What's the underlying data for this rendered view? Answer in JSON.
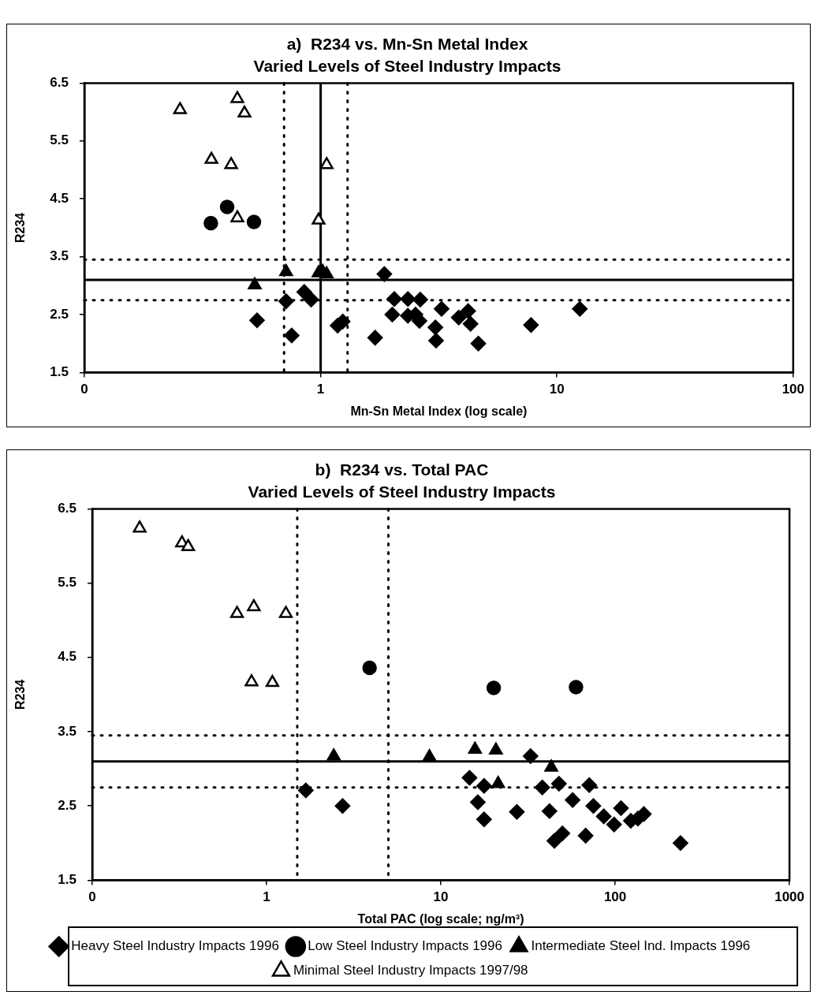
{
  "chart_data": [
    {
      "type": "scatter",
      "title": "a)  R234 vs. Mn-Sn Metal Index",
      "subtitle": "Varied Levels of Steel Industry Impacts",
      "xlabel": "Mn-Sn Metal Index (log scale)",
      "ylabel": "R234",
      "log": "x",
      "grid": false,
      "legend": false,
      "xlim": [
        0.1,
        100
      ],
      "xticks": [
        {
          "value": 0.1,
          "label": "0"
        },
        1,
        10,
        100
      ],
      "ylim": [
        1.5,
        6.5
      ],
      "yticks": [
        1.5,
        2.5,
        3.5,
        4.5,
        5.5,
        6.5
      ],
      "series": [
        {
          "color": "#000000",
          "marker": "diamond",
          "x": [
            0.714,
            0.538,
            0.754,
            0.852,
            0.912,
            1.18,
            1.24,
            1.7,
            1.86,
            2.01,
            2.05,
            2.34,
            2.34,
            2.64,
            2.52,
            2.62,
            3.25,
            3.06,
            3.08,
            3.84,
            4.21,
            4.31,
            4.65,
            7.77,
            12.5
          ],
          "values": [
            2.73,
            2.4,
            2.14,
            2.89,
            2.76,
            2.31,
            2.38,
            2.1,
            3.2,
            2.5,
            2.77,
            2.77,
            2.48,
            2.76,
            2.5,
            2.39,
            2.6,
            2.28,
            2.05,
            2.45,
            2.56,
            2.34,
            2.0,
            2.32,
            2.6
          ]
        },
        {
          "color": "#000000",
          "marker": "circle",
          "x": [
            0.343,
            0.402,
            0.522
          ],
          "values": [
            4.08,
            4.36,
            4.1
          ]
        },
        {
          "color": "#000000",
          "marker": "triangle",
          "x": [
            0.526,
            0.714,
            0.98,
            1.02,
            1.06
          ],
          "values": [
            3.01,
            3.24,
            3.22,
            3.24,
            3.2
          ]
        },
        {
          "color": "#ffffff",
          "marker": "triangle",
          "x": [
            0.254,
            0.444,
            0.476,
            0.345,
            0.418,
            0.444,
            1.06,
            0.98
          ],
          "values": [
            6.04,
            6.23,
            5.98,
            5.18,
            5.09,
            4.17,
            5.09,
            4.13
          ]
        }
      ],
      "ref_lines": [
        {
          "axis": "y",
          "value": 3.1,
          "line_style": "solid",
          "color": "#000000"
        },
        {
          "axis": "y",
          "value": 3.45,
          "line_style": "dotted",
          "color": "#000000"
        },
        {
          "axis": "y",
          "value": 2.75,
          "line_style": "dotted",
          "color": "#000000"
        },
        {
          "axis": "x",
          "value": 1,
          "line_style": "solid",
          "color": "#000000"
        },
        {
          "axis": "x",
          "value": 0.7,
          "line_style": "dotted",
          "color": "#000000"
        },
        {
          "axis": "x",
          "value": 1.3,
          "line_style": "dotted",
          "color": "#000000"
        }
      ]
    },
    {
      "type": "scatter",
      "title": "b)  R234 vs. Total PAC",
      "subtitle": "Varied Levels of Steel Industry Impacts",
      "xlabel": "Total PAC (log scale; ng/m³)",
      "ylabel": "R234",
      "log": "x",
      "grid": false,
      "legend": "bottom",
      "xlim": [
        0.1,
        1000
      ],
      "xticks": [
        {
          "value": 0.1,
          "label": "0"
        },
        1,
        10,
        100,
        1000
      ],
      "ylim": [
        1.5,
        6.5
      ],
      "yticks": [
        1.5,
        2.5,
        3.5,
        4.5,
        5.5,
        6.5
      ],
      "series": [
        {
          "name": "Heavy Steel Industry Impacts 1996",
          "color": "#000000",
          "marker": "diamond",
          "x": [
            1.68,
            2.73,
            14.6,
            17.7,
            16.3,
            17.7,
            27.3,
            32.7,
            38.2,
            47.6,
            42,
            57,
            44.8,
            49.8,
            71,
            67.7,
            75,
            86,
            98.6,
            108,
            123,
            135,
            146,
            237
          ],
          "values": [
            2.71,
            2.5,
            2.88,
            2.77,
            2.55,
            2.32,
            2.42,
            3.17,
            2.75,
            2.8,
            2.43,
            2.58,
            2.03,
            2.13,
            2.78,
            2.1,
            2.5,
            2.36,
            2.25,
            2.47,
            2.3,
            2.33,
            2.39,
            2.0
          ]
        },
        {
          "name": "Low Steel Industry Impacts 1996",
          "color": "#000000",
          "marker": "circle",
          "x": [
            3.9,
            20.1,
            59.6
          ],
          "values": [
            4.36,
            4.09,
            4.1
          ]
        },
        {
          "name": "Intermediate Steel Ind. Impacts 1996",
          "color": "#000000",
          "marker": "triangle",
          "x": [
            2.43,
            8.6,
            15.7,
            20.7,
            43,
            21.3
          ],
          "values": [
            3.17,
            3.16,
            3.26,
            3.25,
            3.02,
            2.8
          ]
        },
        {
          "name": "Minimal Steel Industry Impacts 1997/98",
          "color": "#ffffff",
          "marker": "triangle",
          "x": [
            0.187,
            0.327,
            0.355,
            0.677,
            0.845,
            1.29,
            0.82,
            1.08
          ],
          "values": [
            6.24,
            6.04,
            5.99,
            5.09,
            5.18,
            5.09,
            4.17,
            4.16
          ]
        }
      ],
      "ref_lines": [
        {
          "axis": "y",
          "value": 3.1,
          "line_style": "solid",
          "color": "#000000"
        },
        {
          "axis": "y",
          "value": 3.45,
          "line_style": "dotted",
          "color": "#000000"
        },
        {
          "axis": "y",
          "value": 2.75,
          "line_style": "dotted",
          "color": "#000000"
        },
        {
          "axis": "x",
          "value": 1.5,
          "line_style": "dotted",
          "color": "#000000"
        },
        {
          "axis": "x",
          "value": 5,
          "line_style": "dotted",
          "color": "#000000"
        }
      ]
    }
  ]
}
